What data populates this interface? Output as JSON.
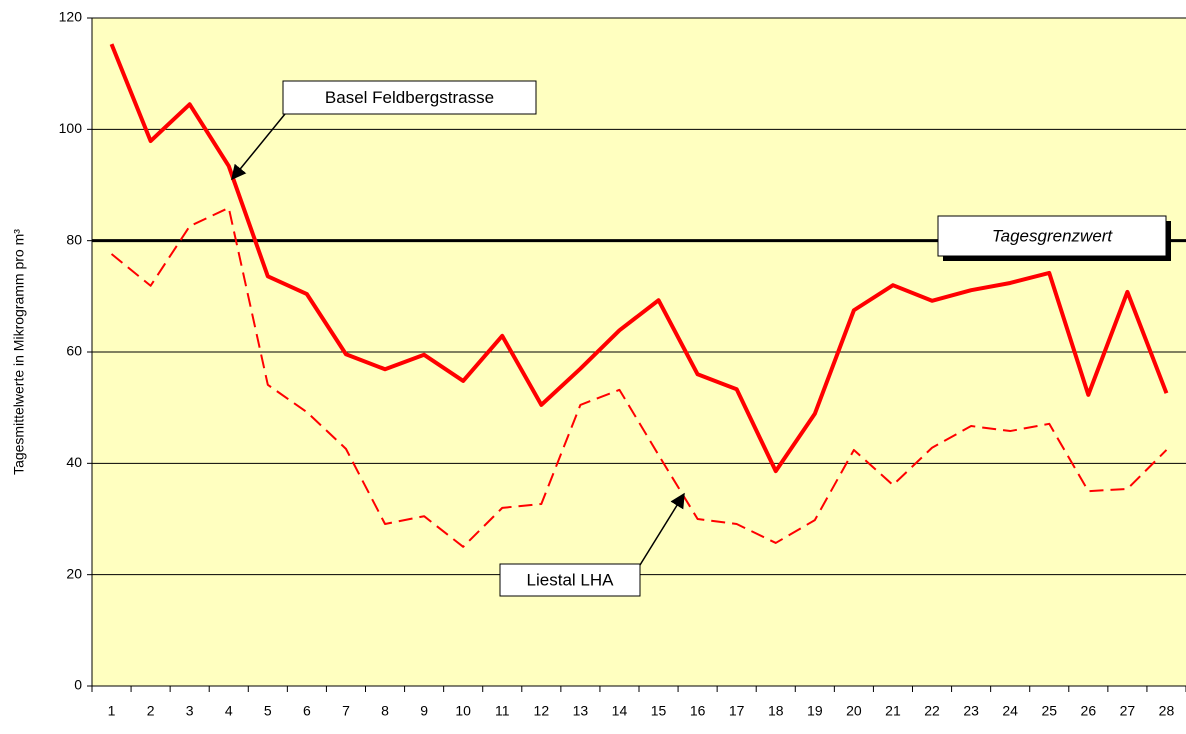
{
  "chart_data": {
    "type": "line",
    "ylabel": "Tagesmittelwerte in Mikrogramm pro m³",
    "categories": [
      "1",
      "2",
      "3",
      "4",
      "5",
      "6",
      "7",
      "8",
      "9",
      "10",
      "11",
      "12",
      "13",
      "14",
      "15",
      "16",
      "17",
      "18",
      "19",
      "20",
      "21",
      "22",
      "23",
      "24",
      "25",
      "26",
      "27",
      "28"
    ],
    "series": [
      {
        "name": "Basel Feldbergstrasse",
        "color": "#ff0000",
        "dashed": false,
        "values": [
          115.3,
          97.9,
          104.5,
          93.4,
          73.6,
          70.4,
          59.6,
          56.9,
          59.5,
          54.8,
          62.9,
          50.5,
          57,
          63.9,
          69.3,
          56,
          53.3,
          38.6,
          48.9,
          67.5,
          72,
          69.2,
          71.1,
          72.4,
          74.2,
          52.3,
          70.8,
          52.6
        ]
      },
      {
        "name": "Liestal LHA",
        "color": "#ff0000",
        "dashed": true,
        "values": [
          77.6,
          71.9,
          82.6,
          85.9,
          54.1,
          49.2,
          42.6,
          29.1,
          30.5,
          25,
          32,
          32.7,
          50.5,
          53.2,
          41.5,
          30,
          29.1,
          25.7,
          29.8,
          42.4,
          36.1,
          42.8,
          46.7,
          45.8,
          47.1,
          35,
          35.4,
          42.4
        ]
      }
    ],
    "reference_line": {
      "value": 80,
      "label": "Tagesgrenzwert",
      "color": "#000000"
    },
    "ylim": [
      0,
      120
    ],
    "yticks": [
      0,
      20,
      40,
      60,
      80,
      100,
      120
    ],
    "grid": true,
    "background": "#ffffc0"
  }
}
